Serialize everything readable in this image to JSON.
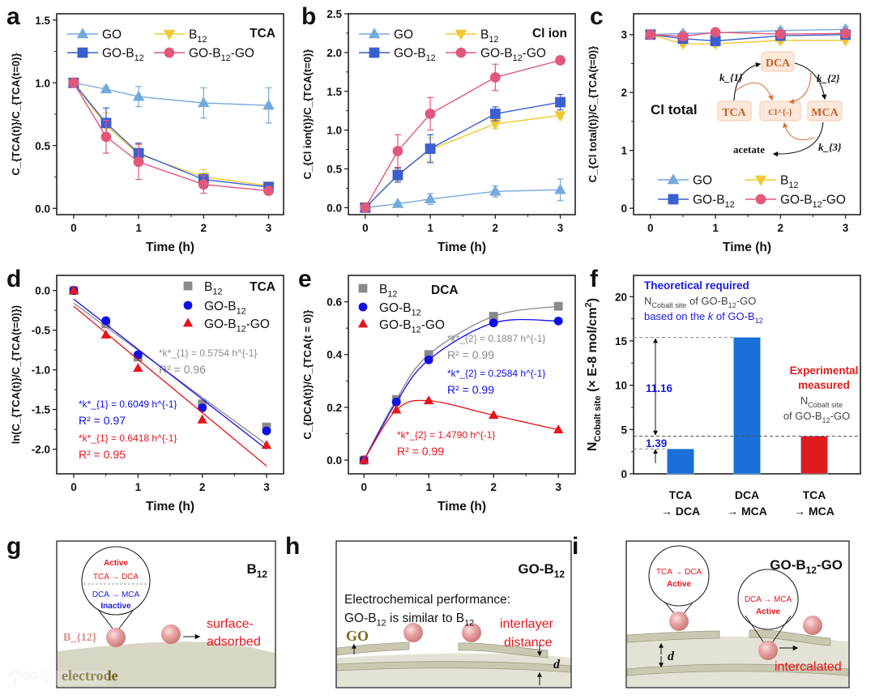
{
  "panel_labels": {
    "a": "a",
    "b": "b",
    "c": "c",
    "d": "d",
    "e": "e",
    "f": "f",
    "g": "g",
    "h": "h",
    "i": "i"
  },
  "chart_data": [
    {
      "id": "a",
      "type": "line",
      "title": "TCA",
      "xlabel": "Time (h)",
      "ylabel": "C_{TCA(t)}/C_{TCA(t=0)}",
      "x": [
        0,
        0.5,
        1,
        2,
        3
      ],
      "xlim": [
        -0.26,
        3.23
      ],
      "ylim": [
        -0.05,
        1.55
      ],
      "xticks": [
        0,
        1,
        2,
        3
      ],
      "xtick_labels": [
        "0",
        "1",
        "2",
        "3"
      ],
      "yticks": [
        0,
        0.5,
        1,
        1.5
      ],
      "ytick_labels": [
        "0.0",
        "0.5",
        "1.0",
        "1.5"
      ],
      "legend_position": "top",
      "series": [
        {
          "name": "GO",
          "marker": "triangle-up",
          "color": "#74a9dc",
          "values": [
            1.0,
            0.95,
            0.89,
            0.84,
            0.82
          ],
          "errors": [
            0.03,
            0.02,
            0.08,
            0.12,
            0.14
          ]
        },
        {
          "name": "B_{12}",
          "marker": "triangle-down",
          "color": "#f0c832",
          "values": [
            1.0,
            0.66,
            0.43,
            0.25,
            0.18
          ],
          "errors": [
            0.02,
            0.1,
            0.08,
            0.06,
            0.02
          ]
        },
        {
          "name": "GO-B_{12}",
          "marker": "square",
          "color": "#3b5fcf",
          "values": [
            1.0,
            0.68,
            0.44,
            0.23,
            0.17
          ],
          "errors": [
            0.02,
            0.12,
            0.08,
            0.04,
            0.02
          ]
        },
        {
          "name": "GO-B_{12}-GO",
          "marker": "circle",
          "color": "#e2577c",
          "values": [
            1.0,
            0.57,
            0.37,
            0.19,
            0.14
          ],
          "errors": [
            0.02,
            0.13,
            0.14,
            0.07,
            0.03
          ]
        }
      ]
    },
    {
      "id": "b",
      "type": "line",
      "title": "Cl ion",
      "xlabel": "Time (h)",
      "ylabel": "C_{Cl ion(t)}/C_{TCA(t=0)}",
      "x": [
        0,
        0.5,
        1,
        2,
        3
      ],
      "xlim": [
        -0.26,
        3.23
      ],
      "ylim": [
        -0.09,
        2.5
      ],
      "xticks": [
        0,
        1,
        2,
        3
      ],
      "xtick_labels": [
        "0",
        "1",
        "2",
        "3"
      ],
      "yticks": [
        0,
        0.5,
        1,
        1.5,
        2,
        2.5
      ],
      "ytick_labels": [
        "0.0",
        "0.5",
        "1.0",
        "1.5",
        "2.0",
        "2.5"
      ],
      "legend_position": "top",
      "series": [
        {
          "name": "GO",
          "marker": "triangle-up",
          "color": "#74a9dc",
          "values": [
            0,
            0.05,
            0.11,
            0.21,
            0.23
          ],
          "errors": [
            0.03,
            0.02,
            0.07,
            0.07,
            0.14
          ]
        },
        {
          "name": "B_{12}",
          "marker": "triangle-down",
          "color": "#f0c832",
          "values": [
            0,
            0.42,
            0.75,
            1.08,
            1.19
          ],
          "errors": [
            0.03,
            0.07,
            0.15,
            0.06,
            0.04
          ]
        },
        {
          "name": "GO-B_{12}",
          "marker": "square",
          "color": "#3b5fcf",
          "values": [
            0,
            0.42,
            0.76,
            1.21,
            1.36
          ],
          "errors": [
            0.03,
            0.09,
            0.18,
            0.09,
            0.1
          ]
        },
        {
          "name": "GO-B_{12}-GO",
          "marker": "circle",
          "color": "#e2577c",
          "values": [
            0,
            0.73,
            1.21,
            1.68,
            1.9
          ],
          "errors": [
            0.03,
            0.21,
            0.21,
            0.17,
            0.02
          ]
        }
      ]
    },
    {
      "id": "c",
      "type": "line",
      "title": "Cl total",
      "xlabel": "Time (h)",
      "ylabel": "C_{Cl total(t)}/C_{TCA(t=0)}",
      "x": [
        0,
        0.5,
        1,
        2,
        3
      ],
      "xlim": [
        -0.26,
        3.23
      ],
      "ylim": [
        -0.11,
        3.36
      ],
      "xticks": [
        0,
        1,
        2,
        3
      ],
      "xtick_labels": [
        "0",
        "1",
        "2",
        "3"
      ],
      "yticks": [
        0,
        1,
        2,
        3
      ],
      "ytick_labels": [
        "0",
        "1",
        "2",
        "3"
      ],
      "legend_position": "bottom",
      "series": [
        {
          "name": "GO",
          "marker": "triangle-up",
          "color": "#74a9dc",
          "values": [
            3.0,
            3.02,
            3.03,
            3.07,
            3.09
          ],
          "errors": [
            0.03,
            0.04,
            0.04,
            0.05,
            0.05
          ]
        },
        {
          "name": "B_{12}",
          "marker": "triangle-down",
          "color": "#f0c832",
          "values": [
            3.0,
            2.84,
            2.84,
            2.9,
            2.9
          ],
          "errors": [
            0.03,
            0.04,
            0.04,
            0.04,
            0.04
          ]
        },
        {
          "name": "GO-B_{12}",
          "marker": "square",
          "color": "#3b5fcf",
          "values": [
            3.0,
            2.93,
            2.89,
            2.98,
            3.0
          ],
          "errors": [
            0.03,
            0.05,
            0.05,
            0.05,
            0.05
          ]
        },
        {
          "name": "GO-B_{12}-GO",
          "marker": "circle",
          "color": "#e2577c",
          "values": [
            3.0,
            2.97,
            3.04,
            3.01,
            3.02
          ],
          "errors": [
            0.03,
            0.04,
            0.04,
            0.04,
            0.04
          ]
        }
      ],
      "scheme": {
        "TCA": "TCA",
        "DCA": "DCA",
        "Cl": "Cl^{-}",
        "MCA": "MCA",
        "acetate": "acetate",
        "k1": "k_{1}",
        "k2": "k_{2}",
        "k3": "k_{3}"
      }
    },
    {
      "id": "d",
      "type": "scatter",
      "title": "TCA",
      "xlabel": "Time (h)",
      "ylabel": "ln(C_{TCA(t)}/C_{TCA(t=0)})",
      "x": [
        0,
        0.5,
        1,
        2,
        3
      ],
      "xlim": [
        -0.265,
        3.265
      ],
      "ylim": [
        -2.31,
        0.19
      ],
      "xticks": [
        0,
        1,
        2,
        3
      ],
      "xtick_labels": [
        "0",
        "1",
        "2",
        "3"
      ],
      "yticks": [
        0,
        -0.5,
        -1,
        -1.5,
        -2
      ],
      "ytick_labels": [
        "0.0",
        "-0.5",
        "-1.0",
        "-1.5",
        "-2.0"
      ],
      "legend_position": "top-right",
      "series": [
        {
          "name": "B_{12}",
          "marker": "square",
          "color": "#8a8a8a",
          "values": [
            0,
            -0.42,
            -0.84,
            -1.43,
            -1.72
          ],
          "fit": [
            [
              0,
              -0.16
            ],
            [
              3,
              -1.94
            ]
          ],
          "annotation": [
            "*k*_{1} =  0.5754 h^{-1}",
            "R² = 0.96"
          ]
        },
        {
          "name": "GO-B_{12}",
          "marker": "circle",
          "color": "#1010e6",
          "values": [
            0,
            -0.38,
            -0.81,
            -1.48,
            -1.77
          ],
          "fit": [
            [
              0,
              -0.11
            ],
            [
              3,
              -2.0
            ]
          ],
          "annotation": [
            "*k*_{1} =  0.6049 h^{-1}",
            "R² = 0.97"
          ]
        },
        {
          "name": "GO-B_{12}-GO",
          "marker": "triangle-up",
          "color": "#e8141c",
          "values": [
            0,
            -0.56,
            -0.98,
            -1.63,
            -1.95
          ],
          "fit": [
            [
              0,
              -0.2
            ],
            [
              3,
              -2.21
            ]
          ],
          "annotation": [
            "*k*_{1} = 0.6418 h^{-1}",
            "R² = 0.95"
          ]
        }
      ]
    },
    {
      "id": "e",
      "type": "scatter",
      "title": "DCA",
      "xlabel": "Time (h)",
      "ylabel": "C_{DCA(t)}/C_{TCA(t = 0)}",
      "x": [
        0,
        0.5,
        1,
        2,
        3
      ],
      "xlim": [
        -0.24,
        3.26
      ],
      "ylim": [
        -0.052,
        0.7
      ],
      "xticks": [
        0,
        1,
        2,
        3
      ],
      "xtick_labels": [
        "0",
        "1",
        "2",
        "3"
      ],
      "yticks": [
        0,
        0.2,
        0.4,
        0.6
      ],
      "ytick_labels": [
        "0.0",
        "0.2",
        "0.4",
        "0.6"
      ],
      "legend_position": "top-left",
      "series": [
        {
          "name": "B_{12}",
          "marker": "square",
          "color": "#8a8a8a",
          "values": [
            0,
            0.23,
            0.4,
            0.545,
            0.583
          ],
          "annotation": [
            "*k*_{2} =  0.1887 h^{-1}",
            "R² = 0.99"
          ]
        },
        {
          "name": "GO-B_{12}",
          "marker": "circle",
          "color": "#1010e6",
          "values": [
            0,
            0.22,
            0.38,
            0.52,
            0.527
          ],
          "annotation": [
            "*k*_{2} =  0.2584 h^{-1}",
            "R² = 0.99"
          ]
        },
        {
          "name": "GO-B_{12}-GO",
          "marker": "triangle-up",
          "color": "#e8141c",
          "values": [
            0,
            0.19,
            0.225,
            0.17,
            0.115
          ],
          "annotation": [
            "*k*_{2} = 1.4790 h^{-1}",
            "R² = 0.99"
          ]
        }
      ]
    },
    {
      "id": "f",
      "type": "bar",
      "ylabel": "N_{Cobalt site} (× E-8 mol/cm^{2})",
      "categories": [
        [
          "TCA",
          "→ DCA"
        ],
        [
          "DCA",
          "→ MCA"
        ],
        [
          "TCA",
          "→ MCA"
        ]
      ],
      "values": [
        2.8,
        15.4,
        4.25
      ],
      "colors": [
        "#1a6fd8",
        "#1a6fd8",
        "#e01b1b"
      ],
      "ylim": [
        0,
        22.4
      ],
      "yticks": [
        0,
        5,
        10,
        15,
        20
      ],
      "ytick_labels": [
        "0",
        "5",
        "10",
        "15",
        "20"
      ],
      "differences": [
        {
          "label": "11.16"
        },
        {
          "label": "1.39"
        }
      ],
      "annotations": {
        "theoretical_title": "Theoretical required",
        "theoretical_line2": "N_{Cobalt site} of GO-B_{12}-GO",
        "theoretical_line3": "based on the *k* of GO-B_{12}",
        "experimental_title1": "Experimental",
        "experimental_title2": "measured",
        "experimental_line3": "N_{Cobalt site}",
        "experimental_line4": "of GO-B_{12}-GO"
      },
      "accent_blue": "#1a1ae0",
      "accent_red": "#e01b1b"
    }
  ],
  "schematics": {
    "g": {
      "title": "B_{12}",
      "active": "Active",
      "tca_dca": "TCA → DCA",
      "dca_mca": "DCA → MCA",
      "inactive": "Inactive",
      "b12_label": "B_{12}",
      "surface1": "surface-",
      "surface2": "adsorbed",
      "electrode": "electrode"
    },
    "h": {
      "title": "GO-B_{12}",
      "line1": "Electrochemical performance:",
      "line2": "GO-B_{12} is similar to B_{12}",
      "go_label": "GO",
      "interlayer1": "interlayer",
      "interlayer2": "distance",
      "d": "d"
    },
    "i": {
      "title": "GO-B_{12}-GO",
      "tca_dca": "TCA → DCA",
      "active1": "Active",
      "dca_mca": "DCA → MCA",
      "active2": "Active",
      "d": "d",
      "intercalated": "intercalated"
    }
  },
  "watermark": "大数跨境"
}
